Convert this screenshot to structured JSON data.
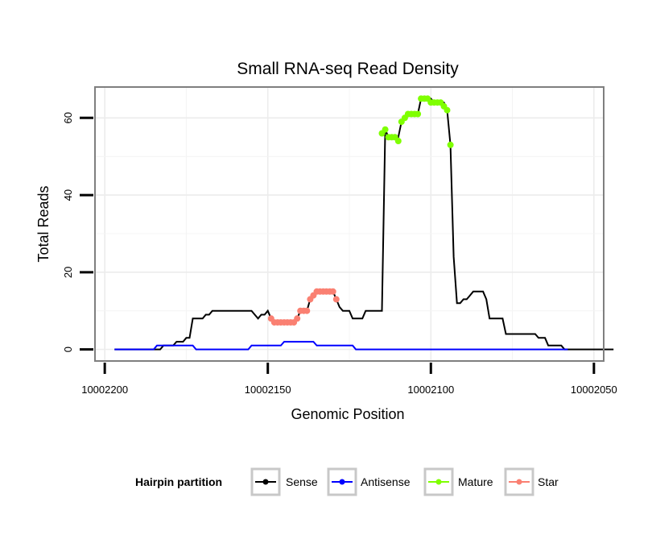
{
  "chart_data": {
    "type": "line",
    "title": "Small RNA-seq Read Density",
    "xlabel": "Genomic Position",
    "ylabel": "Total Reads",
    "xlim": [
      10002203,
      10002047
    ],
    "ylim": [
      -3,
      68
    ],
    "x_ticks": [
      10002200,
      10002150,
      10002100,
      10002050
    ],
    "x_tick_labels": [
      "10002200",
      "10002150",
      "10002100",
      "10002050"
    ],
    "y_ticks": [
      0,
      20,
      40,
      60
    ],
    "y_tick_labels": [
      "0",
      "20",
      "40",
      "60"
    ],
    "grid": true,
    "legend": {
      "title": "Hairpin partition",
      "placement": "bottom",
      "entries": [
        {
          "label": "Sense",
          "color": "#000000"
        },
        {
          "label": "Antisense",
          "color": "#0000ff"
        },
        {
          "label": "Mature",
          "color": "#7fff00"
        },
        {
          "label": "Star",
          "color": "#fa8072"
        }
      ]
    },
    "series": [
      {
        "name": "Sense",
        "color": "#000000",
        "style": "step",
        "points": [
          [
            10002197,
            0
          ],
          [
            10002183,
            0
          ],
          [
            10002182,
            1
          ],
          [
            10002179,
            1
          ],
          [
            10002178,
            2
          ],
          [
            10002176,
            2
          ],
          [
            10002175,
            3
          ],
          [
            10002174,
            3
          ],
          [
            10002173,
            8
          ],
          [
            10002170,
            8
          ],
          [
            10002169,
            9
          ],
          [
            10002168,
            9
          ],
          [
            10002167,
            10
          ],
          [
            10002155,
            10
          ],
          [
            10002154,
            9
          ],
          [
            10002153,
            8
          ],
          [
            10002152,
            9
          ],
          [
            10002151,
            9
          ],
          [
            10002150,
            10
          ],
          [
            10002149,
            8
          ],
          [
            10002147,
            7
          ],
          [
            10002144,
            7
          ],
          [
            10002142,
            7
          ],
          [
            10002141,
            8
          ],
          [
            10002140,
            10
          ],
          [
            10002138,
            10
          ],
          [
            10002137,
            13
          ],
          [
            10002136,
            14
          ],
          [
            10002135,
            15
          ],
          [
            10002130,
            15
          ],
          [
            10002129,
            13
          ],
          [
            10002128,
            11
          ],
          [
            10002127,
            10
          ],
          [
            10002125,
            10
          ],
          [
            10002124,
            8
          ],
          [
            10002121,
            8
          ],
          [
            10002120,
            10
          ],
          [
            10002115,
            10
          ],
          [
            10002114,
            57
          ],
          [
            10002113,
            55
          ],
          [
            10002110,
            55
          ],
          [
            10002109,
            59
          ],
          [
            10002107,
            61
          ],
          [
            10002104,
            61
          ],
          [
            10002103,
            65
          ],
          [
            10002100,
            65
          ],
          [
            10002099,
            64
          ],
          [
            10002096,
            64
          ],
          [
            10002095,
            62
          ],
          [
            10002094,
            53
          ],
          [
            10002093,
            24
          ],
          [
            10002092,
            12
          ],
          [
            10002091,
            12
          ],
          [
            10002090,
            13
          ],
          [
            10002089,
            13
          ],
          [
            10002088,
            14
          ],
          [
            10002087,
            15
          ],
          [
            10002084,
            15
          ],
          [
            10002083,
            13
          ],
          [
            10002082,
            8
          ],
          [
            10002078,
            8
          ],
          [
            10002077,
            4
          ],
          [
            10002068,
            4
          ],
          [
            10002067,
            3
          ],
          [
            10002065,
            3
          ],
          [
            10002064,
            1
          ],
          [
            10002060,
            1
          ],
          [
            10002059,
            0
          ],
          [
            10002044,
            0
          ]
        ]
      },
      {
        "name": "Antisense",
        "color": "#0000ff",
        "style": "step",
        "points": [
          [
            10002197,
            0
          ],
          [
            10002185,
            0
          ],
          [
            10002184,
            1
          ],
          [
            10002173,
            1
          ],
          [
            10002172,
            0
          ],
          [
            10002156,
            0
          ],
          [
            10002155,
            1
          ],
          [
            10002146,
            1
          ],
          [
            10002145,
            2
          ],
          [
            10002136,
            2
          ],
          [
            10002135,
            1
          ],
          [
            10002124,
            1
          ],
          [
            10002123,
            0
          ],
          [
            10002058,
            0
          ]
        ]
      },
      {
        "name": "Mature",
        "color": "#7fff00",
        "style": "points",
        "points": [
          [
            10002115,
            56
          ],
          [
            10002114,
            57
          ],
          [
            10002113,
            55
          ],
          [
            10002112,
            55
          ],
          [
            10002111,
            55
          ],
          [
            10002110,
            54
          ],
          [
            10002109,
            59
          ],
          [
            10002108,
            60
          ],
          [
            10002107,
            61
          ],
          [
            10002106,
            61
          ],
          [
            10002105,
            61
          ],
          [
            10002104,
            61
          ],
          [
            10002103,
            65
          ],
          [
            10002102,
            65
          ],
          [
            10002101,
            65
          ],
          [
            10002100,
            64
          ],
          [
            10002099,
            64
          ],
          [
            10002098,
            64
          ],
          [
            10002097,
            64
          ],
          [
            10002096,
            63
          ],
          [
            10002095,
            62
          ],
          [
            10002094,
            53
          ]
        ]
      },
      {
        "name": "Star",
        "color": "#fa8072",
        "style": "points",
        "points": [
          [
            10002149,
            8
          ],
          [
            10002148,
            7
          ],
          [
            10002147,
            7
          ],
          [
            10002146,
            7
          ],
          [
            10002145,
            7
          ],
          [
            10002144,
            7
          ],
          [
            10002143,
            7
          ],
          [
            10002142,
            7
          ],
          [
            10002141,
            8
          ],
          [
            10002140,
            10
          ],
          [
            10002139,
            10
          ],
          [
            10002138,
            10
          ],
          [
            10002137,
            13
          ],
          [
            10002136,
            14
          ],
          [
            10002135,
            15
          ],
          [
            10002134,
            15
          ],
          [
            10002133,
            15
          ],
          [
            10002132,
            15
          ],
          [
            10002131,
            15
          ],
          [
            10002130,
            15
          ],
          [
            10002129,
            13
          ]
        ]
      }
    ]
  }
}
